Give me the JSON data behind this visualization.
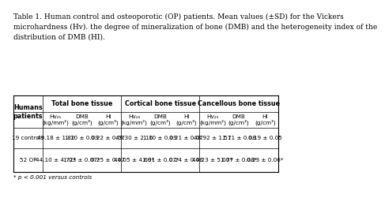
{
  "title_text": "Table 1. Human control and osteoporotic (OP) patients. Mean values (±SD) for the Vickers\nmicrohardness (Hv). the degree of mineralization of bone (DMB) and the heterogeneity index of the\ndistribution of DMB (HI).",
  "footnote": "* p < 0.001 versus controls",
  "col_groups": [
    {
      "label": "Total bone tissue"
    },
    {
      "label": "Cortical bone tissue"
    },
    {
      "label": "Cancellous bone tissue"
    }
  ],
  "sub_headers": [
    "Hv₂₅\n(kg/mm²)",
    "DMB\n(g/cm³)",
    "HI\n(g/cm³)",
    "Hv₂₅\n(kg/mm²)",
    "DMB\n(g/cm³)",
    "HI\n(g/cm³)",
    "Hv₂₅\n(kg/mm²)",
    "DMB\n(g/cm³)",
    "HI\n(g/cm³)"
  ],
  "data_rows": [
    [
      "49.18 ± 1.82",
      "1.10 ± 0.09",
      "0.22 ± 0.07",
      "49.30 ± 2.16",
      "1.10 ± 0.09",
      "0.21 ± 0.07",
      "48.92 ± 1.57",
      "1.11 ± 0.08",
      "0.19 ± 0.05"
    ],
    [
      "44.10 ± 4.72*",
      "1.03 ± 0.07*",
      "0.25 ± 0.07",
      "44.05 ± 4.69*",
      "1.01 ± 0.07*",
      "0.24 ± 0.06",
      "44.23 ± 5.07*",
      "1.07 ± 0.08*",
      "0.23 ± 0.06*"
    ]
  ],
  "row_labels": [
    "19 controls",
    "52 OP"
  ],
  "bg_color": "#ffffff",
  "text_color": "#000000",
  "title_fontsize": 6.5,
  "table_fontsize": 5.2,
  "header_fontsize": 5.8
}
